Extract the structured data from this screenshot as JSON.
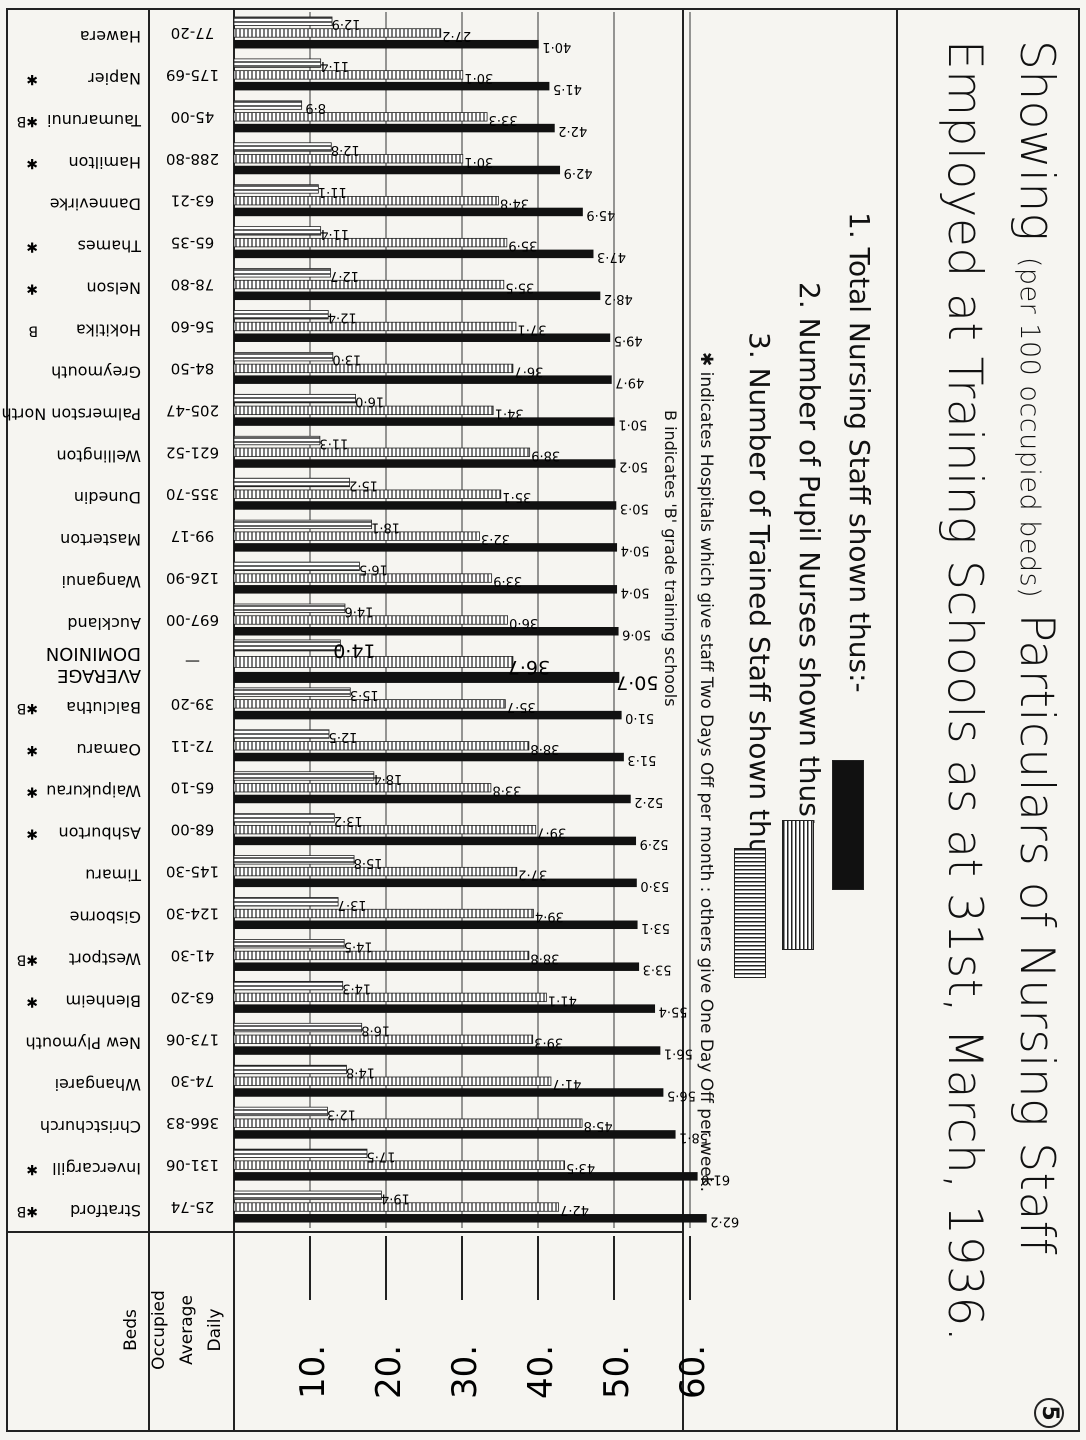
{
  "title": {
    "line1_a": "Showing",
    "line1_small": "(per 100 occupied beds)",
    "line1_b": "Particulars of Nursing Staff",
    "line2": "Employed at Training Schools as at 31st, March, 1936."
  },
  "legend": {
    "item1": "1. Total Nursing Staff shown thus:-",
    "item2": "2. Number of Pupil Nurses shown thus:-",
    "item3": "3. Number of Trained Staff shown thus:-",
    "note_days": "✱ indicates Hospitals which give staff Two Days Off per month : others give One Day Off per week.",
    "note_grade": "B indicates 'B' grade training schools"
  },
  "page_mark": "5",
  "colors": {
    "total": "#111111",
    "ink": "#222222",
    "paper": "#f6f5f1"
  },
  "chart_data": {
    "type": "bar",
    "orientation": "horizontal",
    "beds_header": "Daily Average Occupied Beds",
    "x_ticks": [
      10,
      20,
      30,
      40,
      50,
      60
    ],
    "x_tick_labels": [
      "10.",
      "20.",
      "30.",
      "40.",
      "50.",
      "60."
    ],
    "xlim": [
      0,
      64
    ],
    "grid": true,
    "series_names": [
      "Total Nursing Staff",
      "Number of Pupil Nurses",
      "Number of Trained Staff"
    ],
    "hospitals": [
      {
        "name": "Hawera",
        "mark": "",
        "beds": "77-20",
        "total": 40.1,
        "pupil": 27.2,
        "trained": 12.9
      },
      {
        "name": "Napier",
        "mark": "✱",
        "beds": "175-69",
        "total": 41.5,
        "pupil": 30.1,
        "trained": 11.4
      },
      {
        "name": "Taumarunui",
        "mark": "✱B",
        "beds": "45-00",
        "total": 42.2,
        "pupil": 33.3,
        "trained": 8.9
      },
      {
        "name": "Hamilton",
        "mark": "✱",
        "beds": "288-80",
        "total": 42.9,
        "pupil": 30.1,
        "trained": 12.8
      },
      {
        "name": "Dannevirke",
        "mark": "",
        "beds": "63-21",
        "total": 45.9,
        "pupil": 34.8,
        "trained": 11.1
      },
      {
        "name": "Thames",
        "mark": "✱",
        "beds": "65-35",
        "total": 47.3,
        "pupil": 35.9,
        "trained": 11.4
      },
      {
        "name": "Nelson",
        "mark": "✱",
        "beds": "78-80",
        "total": 48.2,
        "pupil": 35.5,
        "trained": 12.7
      },
      {
        "name": "Hokitika",
        "mark": "B",
        "beds": "56-60",
        "total": 49.5,
        "pupil": 37.1,
        "trained": 12.4
      },
      {
        "name": "Greymouth",
        "mark": "",
        "beds": "84-50",
        "total": 49.7,
        "pupil": 36.7,
        "trained": 13.0
      },
      {
        "name": "Palmerston North",
        "mark": "",
        "beds": "205-47",
        "total": 50.1,
        "pupil": 34.1,
        "trained": 16.0
      },
      {
        "name": "Wellington",
        "mark": "",
        "beds": "621-52",
        "total": 50.2,
        "pupil": 38.9,
        "trained": 11.3
      },
      {
        "name": "Dunedin",
        "mark": "",
        "beds": "355-70",
        "total": 50.3,
        "pupil": 35.1,
        "trained": 15.2
      },
      {
        "name": "Masterton",
        "mark": "",
        "beds": "99-17",
        "total": 50.4,
        "pupil": 32.3,
        "trained": 18.1
      },
      {
        "name": "Wanganui",
        "mark": "",
        "beds": "126-90",
        "total": 50.4,
        "pupil": 33.9,
        "trained": 16.5
      },
      {
        "name": "Auckland",
        "mark": "",
        "beds": "697-00",
        "total": 50.6,
        "pupil": 36.0,
        "trained": 14.6
      },
      {
        "name": "DOMINION AVERAGE",
        "mark": "",
        "beds": "—",
        "total": 50.7,
        "pupil": 36.7,
        "trained": 14.0,
        "label_total": "50·7",
        "label_pupil": "36·7",
        "label_trained": "14·0",
        "is_average": true
      },
      {
        "name": "Balclutha",
        "mark": "✱B",
        "beds": "39-20",
        "total": 51.0,
        "pupil": 35.7,
        "trained": 15.3
      },
      {
        "name": "Oamaru",
        "mark": "✱",
        "beds": "72-11",
        "total": 51.3,
        "pupil": 38.8,
        "trained": 12.5
      },
      {
        "name": "Waipukurau",
        "mark": "✱",
        "beds": "65-10",
        "total": 52.2,
        "pupil": 33.8,
        "trained": 18.4
      },
      {
        "name": "Ashburton",
        "mark": "✱",
        "beds": "68-00",
        "total": 52.9,
        "pupil": 39.7,
        "trained": 13.2
      },
      {
        "name": "Timaru",
        "mark": "",
        "beds": "145-30",
        "total": 53.0,
        "pupil": 37.2,
        "trained": 15.8
      },
      {
        "name": "Gisborne",
        "mark": "",
        "beds": "124-30",
        "total": 53.1,
        "pupil": 39.4,
        "trained": 13.7
      },
      {
        "name": "Westport",
        "mark": "✱B",
        "beds": "41-30",
        "total": 53.3,
        "pupil": 38.8,
        "trained": 14.5
      },
      {
        "name": "Blenheim",
        "mark": "✱",
        "beds": "63-20",
        "total": 55.4,
        "pupil": 41.1,
        "trained": 14.3
      },
      {
        "name": "New Plymouth",
        "mark": "",
        "beds": "173-06",
        "total": 56.1,
        "pupil": 39.3,
        "trained": 16.8
      },
      {
        "name": "Whangarei",
        "mark": "",
        "beds": "74-30",
        "total": 56.5,
        "pupil": 41.7,
        "trained": 14.8
      },
      {
        "name": "Christchurch",
        "mark": "",
        "beds": "366-83",
        "total": 58.1,
        "pupil": 45.8,
        "trained": 12.3
      },
      {
        "name": "Invercargill",
        "mark": "✱",
        "beds": "131-06",
        "total": 61.0,
        "pupil": 43.5,
        "trained": 17.5
      },
      {
        "name": "Stratford",
        "mark": "✱B",
        "beds": "25-74",
        "total": 62.2,
        "pupil": 42.7,
        "trained": 19.4
      }
    ]
  }
}
